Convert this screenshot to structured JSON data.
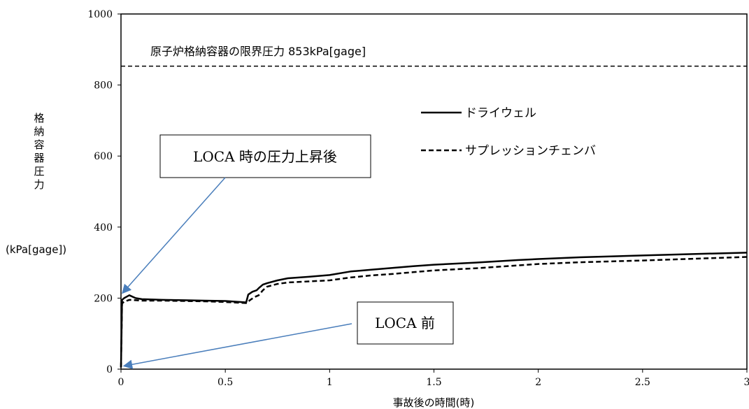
{
  "chart_data": {
    "type": "line",
    "xlabel": "事故後の時間(時)",
    "ylabel_chars": [
      "格",
      "納",
      "容",
      "器",
      "圧",
      "力"
    ],
    "ylabel_unit": "(kPa[gage])",
    "xlim": [
      0,
      3
    ],
    "ylim": [
      0,
      1000
    ],
    "x_ticks": [
      0,
      0.5,
      1,
      1.5,
      2,
      2.5,
      3
    ],
    "x_tick_labels": [
      "0",
      "0.5",
      "1",
      "1.5",
      "2",
      "2.5",
      "3"
    ],
    "y_ticks": [
      0,
      200,
      400,
      600,
      800,
      1000
    ],
    "y_tick_labels": [
      "0",
      "200",
      "400",
      "600",
      "800",
      "1000"
    ],
    "grid": false,
    "legend_position": "upper-right",
    "series": [
      {
        "name": "ドライウェル",
        "style": "solid",
        "color": "#000000",
        "x": [
          0,
          0.005,
          0.015,
          0.04,
          0.07,
          0.1,
          0.2,
          0.3,
          0.4,
          0.5,
          0.6,
          0.61,
          0.63,
          0.65,
          0.66,
          0.68,
          0.7,
          0.75,
          0.8,
          0.9,
          1.0,
          1.1,
          1.2,
          1.3,
          1.4,
          1.5,
          1.7,
          1.9,
          2.0,
          2.2,
          2.5,
          2.8,
          3.0
        ],
        "y": [
          5,
          195,
          200,
          208,
          200,
          197,
          195,
          194,
          193,
          192,
          188,
          210,
          218,
          222,
          228,
          238,
          242,
          250,
          256,
          260,
          265,
          275,
          280,
          285,
          290,
          294,
          300,
          307,
          310,
          315,
          320,
          325,
          328
        ]
      },
      {
        "name": "サプレッションチェンバ",
        "style": "dashed",
        "color": "#000000",
        "x": [
          0,
          0.005,
          0.015,
          0.04,
          0.07,
          0.1,
          0.2,
          0.3,
          0.4,
          0.5,
          0.6,
          0.62,
          0.64,
          0.66,
          0.68,
          0.7,
          0.75,
          0.8,
          0.9,
          1.0,
          1.1,
          1.2,
          1.3,
          1.4,
          1.5,
          1.7,
          1.9,
          2.0,
          2.2,
          2.5,
          2.8,
          3.0
        ],
        "y": [
          5,
          185,
          190,
          195,
          194,
          193,
          193,
          192,
          191,
          189,
          186,
          195,
          203,
          208,
          222,
          232,
          240,
          244,
          247,
          250,
          258,
          264,
          268,
          273,
          278,
          284,
          292,
          296,
          301,
          306,
          312,
          316
        ]
      }
    ],
    "reference_line": {
      "value": 853,
      "label": "原子炉格納容器の限界圧力 853kPa[gage]",
      "style": "dashed"
    },
    "callouts": [
      {
        "text": "LOCA 時の圧力上昇後",
        "point_x": 0,
        "point_y": 210
      },
      {
        "text": "LOCA 前",
        "point_x": 0,
        "point_y": 5
      }
    ],
    "callout_arrow_color": "#4a7ebb"
  }
}
